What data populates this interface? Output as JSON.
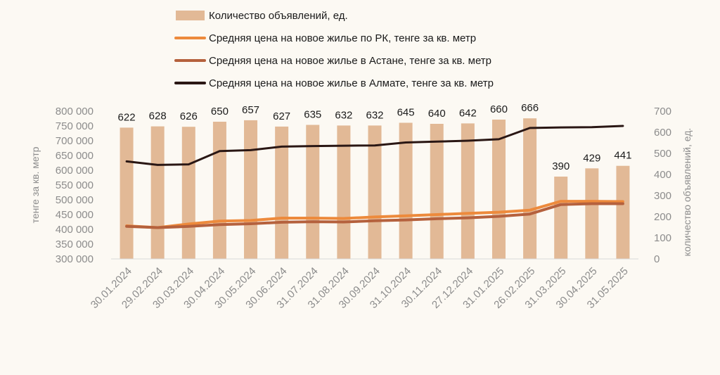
{
  "chart_data": {
    "type": "bar+line",
    "categories": [
      "30.01.2024",
      "29.02.2024",
      "30.03.2024",
      "30.04.2024",
      "30.05.2024",
      "30.06.2024",
      "31.07.2024",
      "31.08.2024",
      "30.09.2024",
      "31.10.2024",
      "30.11.2024",
      "27.12.2024",
      "31.01.2025",
      "26.02.2025",
      "31.03.2025",
      "30.04.2025",
      "31.05.2025"
    ],
    "bar_series": {
      "name": "Количество объявлений, ед.",
      "values": [
        622,
        628,
        626,
        650,
        657,
        627,
        635,
        632,
        632,
        645,
        640,
        642,
        660,
        666,
        390,
        429,
        441
      ],
      "color": "#e2b996",
      "axis": "right"
    },
    "line_series": [
      {
        "name": "Средняя цена на новое жилье по РК, тенге за кв. метр",
        "values": [
          412000,
          406000,
          418000,
          428000,
          430000,
          438000,
          438000,
          437000,
          442000,
          446000,
          450000,
          454000,
          458000,
          465000,
          495000,
          495000,
          494000
        ],
        "color": "#ed8a3c",
        "width": 4
      },
      {
        "name": "Средняя цена на новое жилье в Астане, тенге за кв. метр",
        "values": [
          410000,
          406000,
          410000,
          416000,
          419000,
          424000,
          426000,
          425000,
          429000,
          432000,
          436000,
          439000,
          444000,
          452000,
          484000,
          487000,
          487000
        ],
        "color": "#b5613d",
        "width": 4
      },
      {
        "name": "Средняя цена на новое жилье в Алмате, тенге за кв. метр",
        "values": [
          630000,
          618000,
          620000,
          665000,
          668000,
          680000,
          682000,
          683000,
          684000,
          694000,
          697000,
          700000,
          705000,
          743000,
          745000,
          746000,
          750000
        ],
        "color": "#2a1714",
        "width": 3
      }
    ],
    "y_left": {
      "label": "тенге за кв. метр",
      "min": 300000,
      "max": 800000,
      "step": 50000,
      "tick_labels": [
        "300 000",
        "350 000",
        "400 000",
        "450 000",
        "500 000",
        "550 000",
        "600 000",
        "650 000",
        "700 000",
        "750 000",
        "800 000"
      ]
    },
    "y_right": {
      "label": "количество объявлений, ед.",
      "min": 0,
      "max": 700,
      "step": 100,
      "tick_labels": [
        "0",
        "100",
        "200",
        "300",
        "400",
        "500",
        "600",
        "700"
      ]
    },
    "legend_position": "top",
    "grid": false
  }
}
